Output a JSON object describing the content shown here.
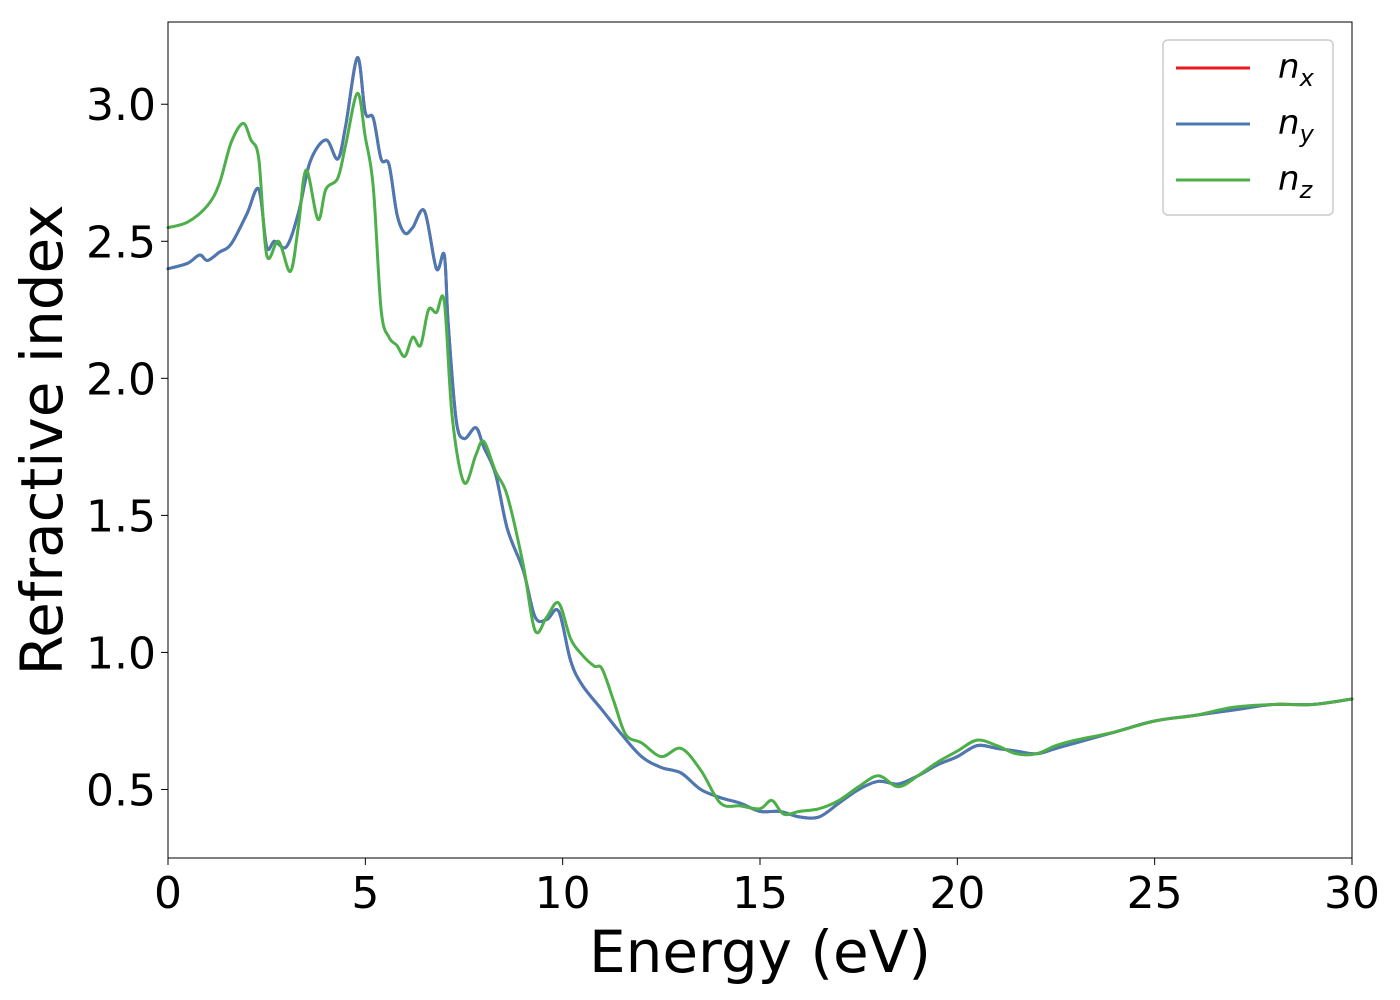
{
  "chart_data": {
    "type": "line",
    "xlabel": "Energy (eV)",
    "ylabel": "Refractive index",
    "xlim": [
      0,
      30
    ],
    "ylim": [
      0.25,
      3.3
    ],
    "xticks": [
      0,
      5,
      10,
      15,
      20,
      25,
      30
    ],
    "xtick_labels": [
      "0",
      "5",
      "10",
      "15",
      "20",
      "25",
      "30"
    ],
    "yticks": [
      0.5,
      1.0,
      1.5,
      2.0,
      2.5,
      3.0
    ],
    "ytick_labels": [
      "0.5",
      "1.0",
      "1.5",
      "2.0",
      "2.5",
      "3.0"
    ],
    "grid": false,
    "legend_position": "top-right",
    "series": [
      {
        "name": "n_x",
        "label_base": "n",
        "label_sub": "x",
        "color": "#e41a1c",
        "x": [
          0,
          0.5,
          0.8,
          1.0,
          1.3,
          1.6,
          2.0,
          2.3,
          2.5,
          2.7,
          3.0,
          3.3,
          3.6,
          4.0,
          4.3,
          4.5,
          4.8,
          5.0,
          5.2,
          5.4,
          5.6,
          5.8,
          6.0,
          6.2,
          6.5,
          6.8,
          7.0,
          7.1,
          7.3,
          7.5,
          7.8,
          8.0,
          8.3,
          8.6,
          9.0,
          9.3,
          9.6,
          9.9,
          10.2,
          10.5,
          11.0,
          11.5,
          12.0,
          12.5,
          13.0,
          13.5,
          14.0,
          14.5,
          15.0,
          15.5,
          16.0,
          16.5,
          17.0,
          17.5,
          18.0,
          18.5,
          19.0,
          19.5,
          20.0,
          20.5,
          21.0,
          21.5,
          22.0,
          22.5,
          23.0,
          24.0,
          25.0,
          26.0,
          27.0,
          28.0,
          29.0,
          30.0
        ],
        "y": [
          2.4,
          2.42,
          2.45,
          2.43,
          2.46,
          2.49,
          2.6,
          2.69,
          2.48,
          2.5,
          2.48,
          2.6,
          2.79,
          2.87,
          2.8,
          2.92,
          3.17,
          2.97,
          2.95,
          2.8,
          2.78,
          2.6,
          2.53,
          2.55,
          2.61,
          2.4,
          2.45,
          2.2,
          1.85,
          1.78,
          1.82,
          1.75,
          1.65,
          1.45,
          1.3,
          1.13,
          1.12,
          1.15,
          0.97,
          0.88,
          0.79,
          0.7,
          0.62,
          0.58,
          0.56,
          0.5,
          0.47,
          0.45,
          0.42,
          0.42,
          0.4,
          0.4,
          0.45,
          0.5,
          0.53,
          0.52,
          0.55,
          0.59,
          0.62,
          0.66,
          0.65,
          0.64,
          0.63,
          0.65,
          0.67,
          0.71,
          0.75,
          0.77,
          0.79,
          0.81,
          0.81,
          0.83
        ]
      },
      {
        "name": "n_y",
        "label_base": "n",
        "label_sub": "y",
        "color": "#4a7ab5",
        "x": [
          0,
          0.5,
          0.8,
          1.0,
          1.3,
          1.6,
          2.0,
          2.3,
          2.5,
          2.7,
          3.0,
          3.3,
          3.6,
          4.0,
          4.3,
          4.5,
          4.8,
          5.0,
          5.2,
          5.4,
          5.6,
          5.8,
          6.0,
          6.2,
          6.5,
          6.8,
          7.0,
          7.1,
          7.3,
          7.5,
          7.8,
          8.0,
          8.3,
          8.6,
          9.0,
          9.3,
          9.6,
          9.9,
          10.2,
          10.5,
          11.0,
          11.5,
          12.0,
          12.5,
          13.0,
          13.5,
          14.0,
          14.5,
          15.0,
          15.5,
          16.0,
          16.5,
          17.0,
          17.5,
          18.0,
          18.5,
          19.0,
          19.5,
          20.0,
          20.5,
          21.0,
          21.5,
          22.0,
          22.5,
          23.0,
          24.0,
          25.0,
          26.0,
          27.0,
          28.0,
          29.0,
          30.0
        ],
        "y": [
          2.4,
          2.42,
          2.45,
          2.43,
          2.46,
          2.49,
          2.6,
          2.69,
          2.48,
          2.5,
          2.48,
          2.6,
          2.79,
          2.87,
          2.8,
          2.92,
          3.17,
          2.97,
          2.95,
          2.8,
          2.78,
          2.6,
          2.53,
          2.55,
          2.61,
          2.4,
          2.45,
          2.2,
          1.85,
          1.78,
          1.82,
          1.75,
          1.65,
          1.45,
          1.3,
          1.13,
          1.12,
          1.15,
          0.97,
          0.88,
          0.79,
          0.7,
          0.62,
          0.58,
          0.56,
          0.5,
          0.47,
          0.45,
          0.42,
          0.42,
          0.4,
          0.4,
          0.45,
          0.5,
          0.53,
          0.52,
          0.55,
          0.59,
          0.62,
          0.66,
          0.65,
          0.64,
          0.63,
          0.65,
          0.67,
          0.71,
          0.75,
          0.77,
          0.79,
          0.81,
          0.81,
          0.83
        ]
      },
      {
        "name": "n_z",
        "label_base": "n",
        "label_sub": "z",
        "color": "#4daf4a",
        "x": [
          0,
          0.5,
          1.0,
          1.3,
          1.6,
          1.9,
          2.1,
          2.3,
          2.5,
          2.8,
          3.1,
          3.3,
          3.5,
          3.8,
          4.0,
          4.3,
          4.5,
          4.8,
          5.0,
          5.2,
          5.4,
          5.6,
          5.8,
          6.0,
          6.2,
          6.4,
          6.6,
          6.8,
          7.0,
          7.2,
          7.5,
          7.8,
          8.0,
          8.3,
          8.6,
          9.0,
          9.3,
          9.6,
          9.9,
          10.2,
          10.5,
          10.8,
          11.0,
          11.3,
          11.6,
          12.0,
          12.5,
          13.0,
          13.5,
          14.0,
          14.5,
          15.0,
          15.3,
          15.6,
          16.0,
          16.5,
          17.0,
          17.5,
          18.0,
          18.5,
          19.0,
          19.5,
          20.0,
          20.5,
          21.0,
          21.5,
          22.0,
          22.5,
          23.0,
          24.0,
          25.0,
          26.0,
          27.0,
          28.0,
          29.0,
          30.0
        ],
        "y": [
          2.55,
          2.57,
          2.63,
          2.71,
          2.86,
          2.93,
          2.87,
          2.8,
          2.45,
          2.5,
          2.39,
          2.55,
          2.76,
          2.58,
          2.69,
          2.73,
          2.85,
          3.04,
          2.88,
          2.7,
          2.25,
          2.15,
          2.12,
          2.08,
          2.15,
          2.12,
          2.25,
          2.24,
          2.28,
          1.86,
          1.62,
          1.72,
          1.77,
          1.66,
          1.57,
          1.32,
          1.08,
          1.13,
          1.18,
          1.05,
          0.99,
          0.95,
          0.94,
          0.82,
          0.7,
          0.67,
          0.62,
          0.65,
          0.57,
          0.45,
          0.44,
          0.43,
          0.46,
          0.41,
          0.42,
          0.43,
          0.46,
          0.51,
          0.55,
          0.51,
          0.55,
          0.6,
          0.64,
          0.68,
          0.66,
          0.63,
          0.63,
          0.66,
          0.68,
          0.71,
          0.75,
          0.77,
          0.8,
          0.81,
          0.81,
          0.83
        ]
      }
    ]
  }
}
